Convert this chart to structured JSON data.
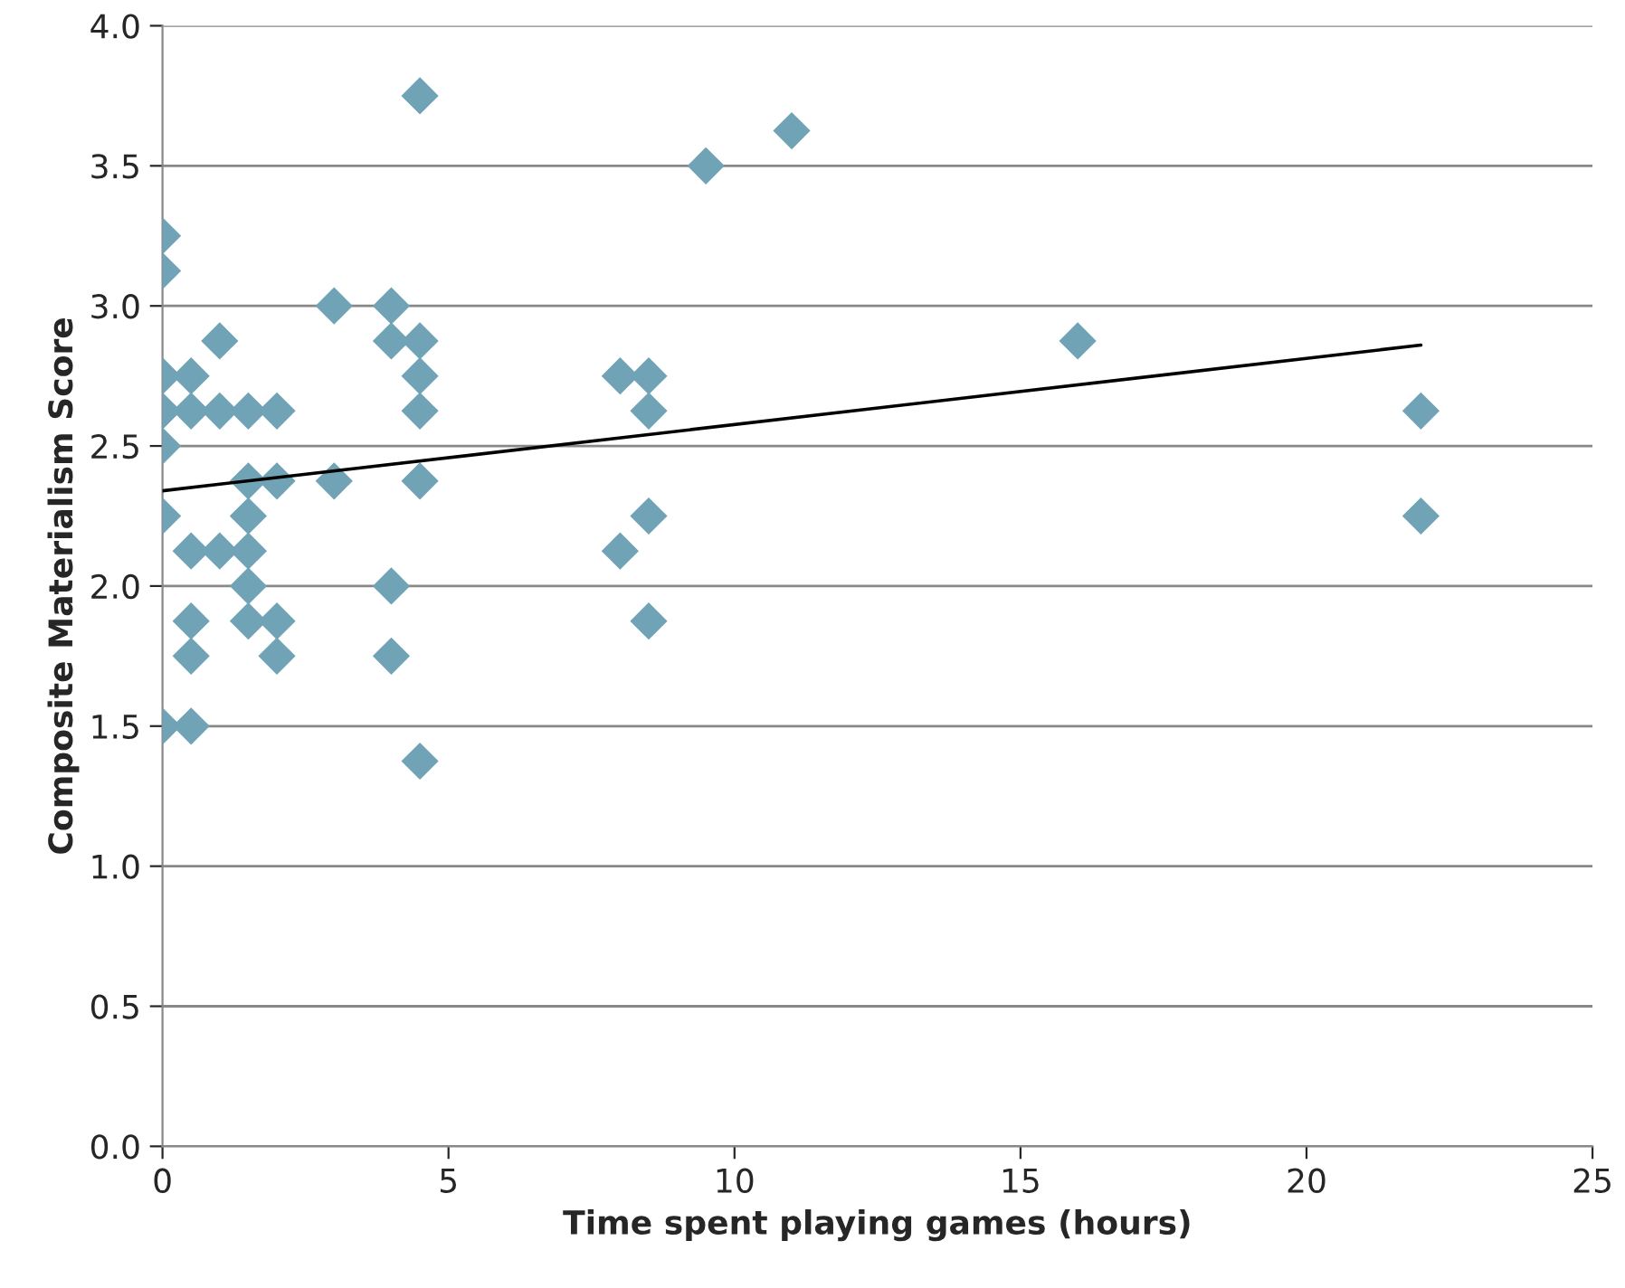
{
  "chart_data": {
    "type": "scatter",
    "xlabel": "Time spent playing games (hours)",
    "ylabel": "Composite Materialism Score",
    "xlim": [
      0,
      25
    ],
    "xticks": [
      0,
      5,
      10,
      15,
      20,
      25
    ],
    "ylim": [
      0,
      4
    ],
    "yticks": [
      {
        "value": 0,
        "label": "0.0"
      },
      {
        "value": 0.5,
        "label": "0.5"
      },
      {
        "value": 1,
        "label": "1.0"
      },
      {
        "value": 1.5,
        "label": "1.5"
      },
      {
        "value": 2,
        "label": "2.0"
      },
      {
        "value": 2.5,
        "label": "2.5"
      },
      {
        "value": 3,
        "label": "3.0"
      },
      {
        "value": 3.5,
        "label": "3.5"
      },
      {
        "value": 4,
        "label": "4.0"
      }
    ],
    "grid": "y",
    "marker": "diamond",
    "series": [
      {
        "color": "#6fa3b5",
        "x": [
          0,
          0,
          0,
          0,
          0,
          0,
          0,
          0.5,
          0.5,
          0.5,
          0.5,
          0.5,
          0.5,
          1,
          1,
          1,
          1.5,
          1.5,
          1.5,
          1.5,
          1.5,
          1.5,
          2,
          2,
          2,
          2,
          3,
          3,
          4,
          4,
          4,
          4,
          4.5,
          4.5,
          4.5,
          4.5,
          4.5,
          4.5,
          8,
          8,
          8.5,
          8.5,
          8.5,
          8.5,
          9.5,
          11,
          16,
          22,
          22
        ],
        "values": [
          3.25,
          3.125,
          2.75,
          2.625,
          2.5,
          2.25,
          1.5,
          2.75,
          2.625,
          2.125,
          1.875,
          1.75,
          1.5,
          2.875,
          2.625,
          2.125,
          2.625,
          2.375,
          2.25,
          2.125,
          2.0,
          1.875,
          2.625,
          2.375,
          1.875,
          1.75,
          3.0,
          2.375,
          3.0,
          2.875,
          2.0,
          1.75,
          3.75,
          2.875,
          2.75,
          2.625,
          2.375,
          1.375,
          2.75,
          2.125,
          2.75,
          2.625,
          2.25,
          1.875,
          3.5,
          3.625,
          2.875,
          2.625,
          2.25
        ]
      },
      {
        "type": "line",
        "color": "#000000",
        "marker": "none",
        "x": [
          0,
          22
        ],
        "values": [
          2.34,
          2.86
        ]
      }
    ]
  }
}
